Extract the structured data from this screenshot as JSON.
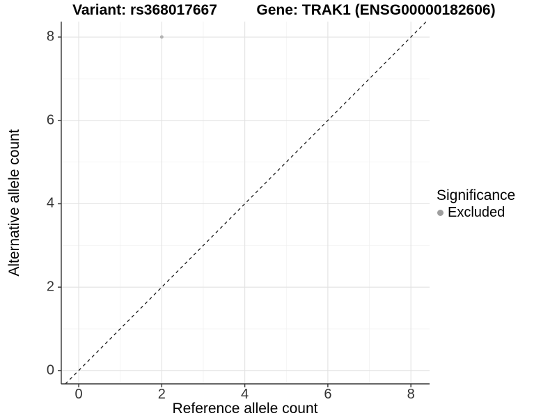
{
  "titles": {
    "variant": "Variant: rs368017667",
    "gene": "Gene: TRAK1 (ENSG00000182606)"
  },
  "chart_data": {
    "type": "scatter",
    "title": "Variant: rs368017667   Gene: TRAK1 (ENSG00000182606)",
    "xlabel": "Reference allele count",
    "ylabel": "Alternative allele count",
    "xlim": [
      -0.42,
      8.45
    ],
    "ylim": [
      -0.32,
      8.37
    ],
    "x_major_ticks": [
      0,
      2,
      4,
      6,
      8
    ],
    "x_minor_ticks": [
      1,
      3,
      5,
      7
    ],
    "y_major_ticks": [
      0,
      2,
      4,
      6,
      8
    ],
    "y_minor_ticks": [
      1,
      3,
      5,
      7
    ],
    "grid": true,
    "reference_line": {
      "type": "identity",
      "style": "dashed",
      "equation": "y = x"
    },
    "points": [
      {
        "x": 2,
        "y": 8,
        "significance": "Excluded"
      }
    ],
    "series": [
      {
        "name": "Excluded",
        "points": [
          [
            2,
            8
          ]
        ]
      }
    ],
    "legend": {
      "title": "Significance",
      "position": "right",
      "entries": [
        {
          "label": "Excluded",
          "color": "#9e9e9e"
        }
      ]
    }
  },
  "colors": {
    "background": "#ffffff",
    "grid_major": "#e2e2e2",
    "grid_minor": "#f0f0f0",
    "axis": "#333333",
    "identity_line": "#1a1a1a",
    "point": "#b3b3b3",
    "legend_dot": "#9e9e9e"
  }
}
